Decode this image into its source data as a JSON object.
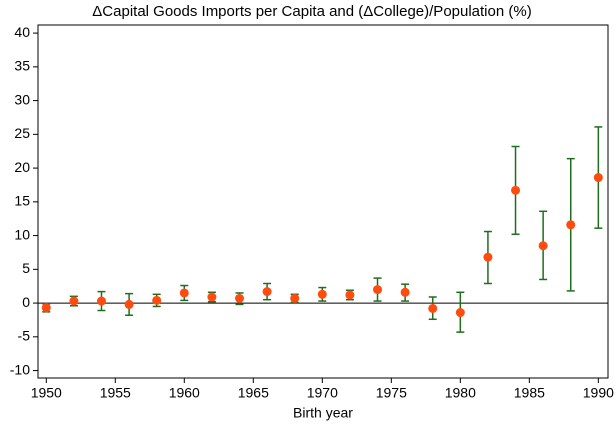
{
  "chart_data": {
    "type": "errorbar",
    "title": "ΔCapital Goods Imports per Capita and (ΔCollege)/Population (%)",
    "x_label": "Birth year",
    "x": [
      1950,
      1952,
      1954,
      1956,
      1958,
      1960,
      1962,
      1964,
      1966,
      1968,
      1970,
      1972,
      1974,
      1976,
      1978,
      1980,
      1982,
      1984,
      1986,
      1988,
      1990
    ],
    "values": [
      -0.7,
      0.3,
      0.3,
      -0.2,
      0.4,
      1.5,
      0.9,
      0.7,
      1.7,
      0.7,
      1.3,
      1.2,
      2.0,
      1.6,
      -0.8,
      -1.4,
      6.8,
      16.7,
      8.5,
      11.6,
      18.6
    ],
    "lower": [
      -1.3,
      -0.4,
      -1.1,
      -1.8,
      -0.5,
      0.4,
      0.2,
      -0.2,
      0.5,
      0.1,
      0.3,
      0.5,
      0.3,
      0.3,
      -2.4,
      -4.3,
      2.9,
      10.2,
      3.5,
      1.8,
      11.1
    ],
    "upper": [
      -0.1,
      1.0,
      1.7,
      1.4,
      1.3,
      2.6,
      1.6,
      1.5,
      2.9,
      1.3,
      2.3,
      1.9,
      3.7,
      2.8,
      0.9,
      1.6,
      10.6,
      23.2,
      13.6,
      21.4,
      26.1
    ],
    "color": "#ff4a10",
    "error_color": "#1e6e1e",
    "xlim": [
      1949.4,
      1990.7
    ],
    "ylim": [
      -11.1,
      41.2
    ],
    "xticks": [
      1950,
      1955,
      1960,
      1965,
      1970,
      1975,
      1980,
      1985,
      1990
    ],
    "yticks": [
      -10,
      -5,
      0,
      5,
      10,
      15,
      20,
      25,
      30,
      35,
      40
    ],
    "reference_line": 0
  }
}
